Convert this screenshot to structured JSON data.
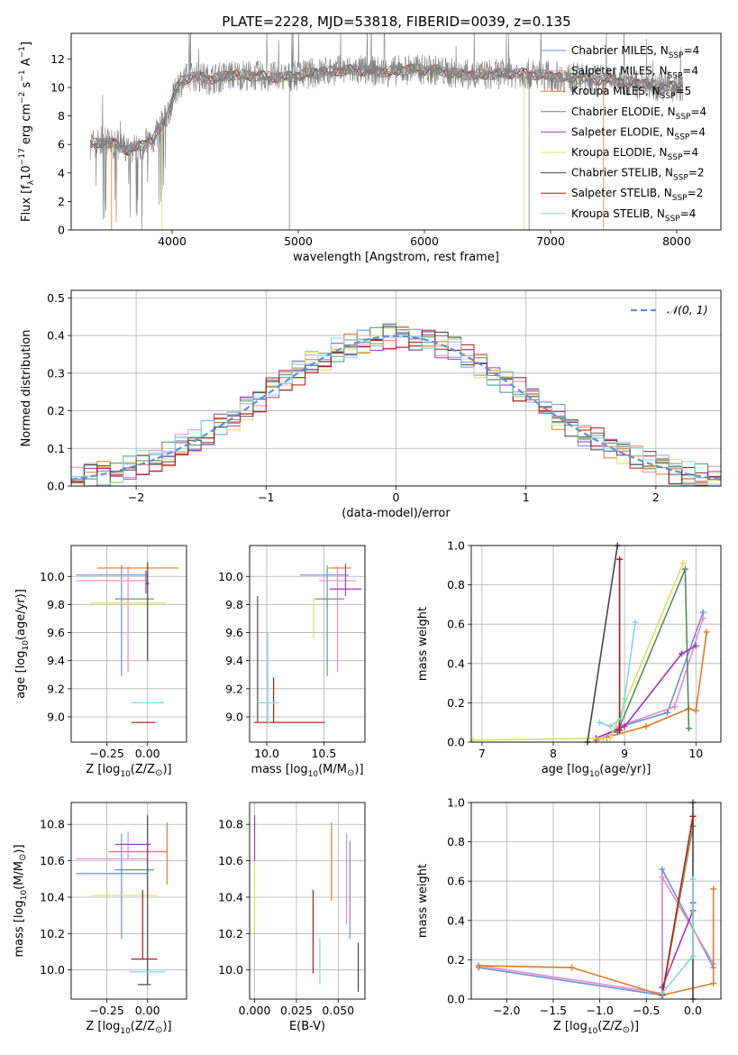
{
  "figure": {
    "title": "PLATE=2228, MJD=53818, FIBERID=0039, z=0.135"
  },
  "colors": {
    "Chabrier MILES": "#6a8fd8",
    "Salpeter MILES": "#e98ac8",
    "Kroupa MILES": "#e07a28",
    "Chabrier ELODIE": "#5a8a60",
    "Salpeter ELODIE": "#a035b8",
    "Kroupa ELODIE": "#d8e45a",
    "Chabrier STELIB": "#444444",
    "Salpeter STELIB": "#b01818",
    "Kroupa STELIB": "#7fd8de",
    "data": "#808080",
    "gauss": "#5a8fdc"
  },
  "chart_data": [
    {
      "id": "spectrum",
      "type": "line",
      "xlabel": "wavelength [Angstrom, rest frame]",
      "ylabel": "Flux [f_λ10^-17 erg cm^-2 s^-1 A^-1]",
      "xlim": [
        3200,
        8350
      ],
      "ylim": [
        0,
        13.8
      ],
      "xticks": [
        4000,
        5000,
        6000,
        7000,
        8000
      ],
      "yticks": [
        0,
        2,
        4,
        6,
        8,
        10,
        12
      ],
      "grid": false,
      "legend_position": "top-right",
      "legend": [
        "Chabrier MILES, N_SSP=4",
        "Salpeter MILES, N_SSP=4",
        "Kroupa MILES, N_SSP=5",
        "Chabrier ELODIE, N_SSP=4",
        "Salpeter ELODIE, N_SSP=4",
        "Kroupa ELODIE, N_SSP=4",
        "Chabrier STELIB, N_SSP=2",
        "Salpeter STELIB, N_SSP=2",
        "Kroupa STELIB, N_SSP=4"
      ],
      "continuum": {
        "x": [
          3350,
          3450,
          3550,
          3650,
          3750,
          3850,
          3950,
          4050,
          4150,
          4300,
          4500,
          4700,
          4900,
          5100,
          5300,
          5500,
          5700,
          5900,
          6100,
          6300,
          6500,
          6700,
          6900,
          7100,
          7300,
          7500,
          7700,
          7900,
          8050
        ],
        "y": [
          6.0,
          6.2,
          6.0,
          5.6,
          5.9,
          6.4,
          7.8,
          10.3,
          10.8,
          10.6,
          10.9,
          10.8,
          10.7,
          11.0,
          11.2,
          11.2,
          11.1,
          11.3,
          11.2,
          10.9,
          10.9,
          11.0,
          10.9,
          10.7,
          10.6,
          10.5,
          10.3,
          10.1,
          10.0
        ]
      }
    },
    {
      "id": "residuals",
      "type": "line",
      "xlabel": "(data-model)/error",
      "ylabel": "Normed distribution",
      "xlim": [
        -2.5,
        2.5
      ],
      "ylim": [
        0,
        0.52
      ],
      "xticks": [
        -2,
        -1,
        0,
        1,
        2
      ],
      "yticks": [
        0.0,
        0.1,
        0.2,
        0.3,
        0.4,
        0.5
      ],
      "grid": true,
      "legend_position": "top-right",
      "legend": [
        "N(0,1)"
      ],
      "gaussian": {
        "mean": 0,
        "sigma": 1,
        "style": "dashed"
      },
      "hist_bin_width": 0.1
    },
    {
      "id": "age-vs-Z",
      "type": "scatter",
      "xlabel": "Z [log10(Z/Z⊙)]",
      "ylabel": "age  [log10(age/yr)]",
      "xlim": [
        -0.47,
        0.24
      ],
      "ylim": [
        8.82,
        10.22
      ],
      "xticks": [
        -0.25,
        0.0
      ],
      "yticks": [
        9.0,
        9.2,
        9.4,
        9.6,
        9.8,
        10.0
      ],
      "grid": true,
      "points": [
        {
          "model": "Chabrier MILES",
          "x": -0.16,
          "y": 10.01,
          "xerr": [
            0.28,
            0.16
          ],
          "yerr": [
            0.72,
            0.07
          ]
        },
        {
          "model": "Salpeter MILES",
          "x": -0.12,
          "y": 9.97,
          "xerr": [
            0.32,
            0.12
          ],
          "yerr": [
            0.65,
            0.1
          ]
        },
        {
          "model": "Kroupa MILES",
          "x": -0.09,
          "y": 10.06,
          "xerr": [
            0.22,
            0.28
          ],
          "yerr": [
            0.0,
            0.0
          ]
        },
        {
          "model": "Chabrier ELODIE",
          "x": -0.09,
          "y": 9.84,
          "xerr": [
            0.11,
            0.13
          ],
          "yerr": [
            0.0,
            0.0
          ]
        },
        {
          "model": "Salpeter ELODIE",
          "x": -0.01,
          "y": 9.88,
          "xerr": [
            0.0,
            0.0
          ],
          "yerr": [
            0.0,
            0.16
          ]
        },
        {
          "model": "Kroupa ELODIE",
          "x": -0.12,
          "y": 9.81,
          "xerr": [
            0.23,
            0.24
          ],
          "yerr": [
            0.0,
            0.0
          ]
        },
        {
          "model": "Chabrier STELIB",
          "x": 0.0,
          "y": 9.95,
          "xerr": [
            0.01,
            0.01
          ],
          "yerr": [
            0.55,
            0.15
          ]
        },
        {
          "model": "Salpeter STELIB",
          "x": -0.03,
          "y": 8.96,
          "xerr": [
            0.07,
            0.08
          ],
          "yerr": [
            0.0,
            0.0
          ]
        },
        {
          "model": "Kroupa STELIB",
          "x": -0.03,
          "y": 9.1,
          "xerr": [
            0.07,
            0.13
          ],
          "yerr": [
            0.0,
            0.0
          ]
        }
      ]
    },
    {
      "id": "age-vs-mass",
      "type": "scatter",
      "xlabel": "mass [log10(M/M⊙)]",
      "ylabel": "",
      "xlim": [
        9.85,
        10.86
      ],
      "ylim": [
        8.82,
        10.22
      ],
      "xticks": [
        10.0,
        10.5
      ],
      "yticks": [
        9.0,
        9.2,
        9.4,
        9.6,
        9.8,
        10.0
      ],
      "grid": true,
      "points": [
        {
          "model": "Chabrier MILES",
          "x": 10.53,
          "y": 10.01,
          "xerr": [
            0.24,
            0.19
          ],
          "yerr": [
            0.72,
            0.07
          ]
        },
        {
          "model": "Salpeter MILES",
          "x": 10.62,
          "y": 9.97,
          "xerr": [
            0.16,
            0.16
          ],
          "yerr": [
            0.65,
            0.1
          ]
        },
        {
          "model": "Kroupa MILES",
          "x": 10.65,
          "y": 10.06,
          "xerr": [
            0.11,
            0.09
          ],
          "yerr": [
            0.0,
            0.0
          ]
        },
        {
          "model": "Chabrier ELODIE",
          "x": 10.55,
          "y": 9.84,
          "xerr": [
            0.13,
            0.13
          ],
          "yerr": [
            0.0,
            0.0
          ]
        },
        {
          "model": "Salpeter ELODIE",
          "x": 10.69,
          "y": 9.91,
          "xerr": [
            0.14,
            0.14
          ],
          "yerr": [
            0.05,
            0.18
          ]
        },
        {
          "model": "Kroupa ELODIE",
          "x": 10.41,
          "y": 9.81,
          "xerr": [
            0.0,
            0.0
          ],
          "yerr": [
            0.25,
            0.04
          ]
        },
        {
          "model": "Chabrier STELIB",
          "x": 9.92,
          "y": 8.96,
          "xerr": [
            0.0,
            0.0
          ],
          "yerr": [
            0.0,
            0.9
          ]
        },
        {
          "model": "Salpeter STELIB",
          "x": 10.06,
          "y": 8.96,
          "xerr": [
            0.17,
            0.45
          ],
          "yerr": [
            0.0,
            0.32
          ]
        },
        {
          "model": "Kroupa STELIB",
          "x": 10.01,
          "y": 9.1,
          "xerr": [
            0.09,
            0.09
          ],
          "yerr": [
            0.15,
            0.5
          ]
        }
      ]
    },
    {
      "id": "mass-weight-vs-age",
      "type": "line",
      "xlabel": "age  [log10(age/yr)]",
      "ylabel": "mass weight",
      "xlim": [
        6.85,
        10.35
      ],
      "ylim": [
        0,
        1.0
      ],
      "xticks": [
        7,
        8,
        9,
        10
      ],
      "yticks": [
        0.0,
        0.2,
        0.4,
        0.6,
        0.8,
        1.0
      ],
      "grid": true,
      "series": [
        {
          "model": "Chabrier MILES",
          "x": [
            8.75,
            8.95,
            9.6,
            10.1
          ],
          "y": [
            0.02,
            0.08,
            0.15,
            0.66
          ]
        },
        {
          "model": "Salpeter MILES",
          "x": [
            8.7,
            8.92,
            9.7,
            10.1
          ],
          "y": [
            0.02,
            0.08,
            0.18,
            0.63
          ]
        },
        {
          "model": "Kroupa MILES",
          "x": [
            8.6,
            9.3,
            9.9,
            10.0,
            10.15
          ],
          "y": [
            0.01,
            0.08,
            0.17,
            0.16,
            0.56
          ]
        },
        {
          "model": "Chabrier ELODIE",
          "x": [
            8.9,
            9.85,
            9.9
          ],
          "y": [
            0.05,
            0.88,
            0.07
          ]
        },
        {
          "model": "Salpeter ELODIE",
          "x": [
            8.6,
            9.0,
            9.8,
            10.0
          ],
          "y": [
            0.02,
            0.08,
            0.45,
            0.49
          ]
        },
        {
          "model": "Kroupa ELODIE",
          "x": [
            6.88,
            8.8,
            9.82
          ],
          "y": [
            0.01,
            0.02,
            0.91
          ]
        },
        {
          "model": "Chabrier STELIB",
          "x": [
            8.48,
            8.9
          ],
          "y": [
            0.0,
            1.0
          ]
        },
        {
          "model": "Salpeter STELIB",
          "x": [
            8.93,
            8.93
          ],
          "y": [
            0.06,
            0.93
          ]
        },
        {
          "model": "Kroupa STELIB",
          "x": [
            8.65,
            8.8,
            8.95,
            9.0,
            9.15
          ],
          "y": [
            0.1,
            0.08,
            0.12,
            0.22,
            0.61
          ]
        }
      ]
    },
    {
      "id": "mass-vs-Z",
      "type": "scatter",
      "xlabel": "Z [log10(Z/Z⊙)]",
      "ylabel": "mass [log10(M/M⊙)]",
      "xlim": [
        -0.47,
        0.24
      ],
      "ylim": [
        9.84,
        10.92
      ],
      "xticks": [
        -0.25,
        0.0
      ],
      "yticks": [
        10.0,
        10.2,
        10.4,
        10.6,
        10.8
      ],
      "grid": true,
      "points": [
        {
          "model": "Chabrier MILES",
          "x": -0.16,
          "y": 10.53,
          "xerr": [
            0.28,
            0.16
          ],
          "yerr": [
            0.36,
            0.22
          ]
        },
        {
          "model": "Salpeter MILES",
          "x": -0.12,
          "y": 10.61,
          "xerr": [
            0.32,
            0.12
          ],
          "yerr": [
            0.0,
            0.15
          ]
        },
        {
          "model": "Kroupa MILES",
          "x": 0.12,
          "y": 10.65,
          "xerr": [
            0.36,
            0.0
          ],
          "yerr": [
            0.18,
            0.16
          ]
        },
        {
          "model": "Chabrier ELODIE",
          "x": -0.09,
          "y": 10.55,
          "xerr": [
            0.11,
            0.13
          ],
          "yerr": [
            0.0,
            0.0
          ]
        },
        {
          "model": "Salpeter ELODIE",
          "x": -0.09,
          "y": 10.69,
          "xerr": [
            0.11,
            0.11
          ],
          "yerr": [
            0.0,
            0.0
          ]
        },
        {
          "model": "Kroupa ELODIE",
          "x": -0.12,
          "y": 10.41,
          "xerr": [
            0.23,
            0.18
          ],
          "yerr": [
            0.0,
            0.0
          ]
        },
        {
          "model": "Chabrier STELIB",
          "x": 0.0,
          "y": 9.92,
          "xerr": [
            0.06,
            0.02
          ],
          "yerr": [
            0.0,
            0.93
          ]
        },
        {
          "model": "Salpeter STELIB",
          "x": -0.03,
          "y": 10.06,
          "xerr": [
            0.07,
            0.09
          ],
          "yerr": [
            0.0,
            0.38
          ]
        },
        {
          "model": "Kroupa STELIB",
          "x": -0.03,
          "y": 9.99,
          "xerr": [
            0.08,
            0.14
          ],
          "yerr": [
            0.0,
            0.0
          ]
        }
      ]
    },
    {
      "id": "mass-vs-EBV",
      "type": "scatter",
      "xlabel": "E(B-V)",
      "ylabel": "",
      "xlim": [
        -0.003,
        0.066
      ],
      "ylim": [
        9.84,
        10.92
      ],
      "xticks": [
        0.0,
        0.025,
        0.05
      ],
      "yticks": [
        10.0,
        10.2,
        10.4,
        10.6,
        10.8
      ],
      "grid": true,
      "points": [
        {
          "model": "Chabrier MILES",
          "x": 0.057,
          "y": 10.45,
          "xerr": [
            0.0,
            0.0
          ],
          "yerr": [
            0.28,
            0.26
          ]
        },
        {
          "model": "Salpeter MILES",
          "x": 0.055,
          "y": 10.4,
          "xerr": [
            0.0,
            0.0
          ],
          "yerr": [
            0.15,
            0.35
          ]
        },
        {
          "model": "Kroupa MILES",
          "x": 0.046,
          "y": 10.55,
          "xerr": [
            0.0,
            0.0
          ],
          "yerr": [
            0.17,
            0.26
          ]
        },
        {
          "model": "Chabrier ELODIE",
          "x": 0.0,
          "y": 10.6,
          "xerr": [
            0.0,
            0.0
          ],
          "yerr": [
            0.0,
            0.0
          ]
        },
        {
          "model": "Salpeter ELODIE",
          "x": 0.0,
          "y": 10.7,
          "xerr": [
            0.0,
            0.0
          ],
          "yerr": [
            0.1,
            0.15
          ]
        },
        {
          "model": "Kroupa ELODIE",
          "x": 0.0,
          "y": 10.41,
          "xerr": [
            0.0,
            0.0
          ],
          "yerr": [
            0.2,
            0.18
          ]
        },
        {
          "model": "Chabrier STELIB",
          "x": 0.062,
          "y": 10.02,
          "xerr": [
            0.0,
            0.0
          ],
          "yerr": [
            0.14,
            0.13
          ]
        },
        {
          "model": "Salpeter STELIB",
          "x": 0.035,
          "y": 10.21,
          "xerr": [
            0.0,
            0.0
          ],
          "yerr": [
            0.23,
            0.23
          ]
        },
        {
          "model": "Kroupa STELIB",
          "x": 0.039,
          "y": 10.09,
          "xerr": [
            0.0,
            0.0
          ],
          "yerr": [
            0.17,
            0.09
          ]
        }
      ]
    },
    {
      "id": "mass-weight-vs-Z",
      "type": "line",
      "xlabel": "Z [log10(Z/Z⊙)]",
      "ylabel": "mass weight",
      "xlim": [
        -2.38,
        0.3
      ],
      "ylim": [
        0,
        1.0
      ],
      "xticks": [
        -2.0,
        -1.5,
        -1.0,
        -0.5,
        0.0
      ],
      "yticks": [
        0.0,
        0.2,
        0.4,
        0.6,
        0.8,
        1.0
      ],
      "grid": true,
      "series": [
        {
          "model": "Chabrier MILES",
          "x": [
            -2.3,
            -0.33,
            -0.33,
            0.22
          ],
          "y": [
            0.16,
            0.02,
            0.66,
            0.16
          ]
        },
        {
          "model": "Salpeter MILES",
          "x": [
            -2.3,
            -0.33,
            -0.33,
            0.22
          ],
          "y": [
            0.17,
            0.03,
            0.62,
            0.18
          ]
        },
        {
          "model": "Kroupa MILES",
          "x": [
            -2.3,
            -1.3,
            -0.33,
            0.22,
            0.22
          ],
          "y": [
            0.17,
            0.16,
            0.02,
            0.08,
            0.56
          ]
        },
        {
          "model": "Chabrier ELODIE",
          "x": [
            -0.33,
            0.0
          ],
          "y": [
            0.02,
            0.88
          ]
        },
        {
          "model": "Salpeter ELODIE",
          "x": [
            -0.33,
            0.0,
            0.0
          ],
          "y": [
            0.06,
            0.45,
            0.49
          ]
        },
        {
          "model": "Kroupa ELODIE",
          "x": [
            -0.33,
            0.0
          ],
          "y": [
            0.02,
            0.91
          ]
        },
        {
          "model": "Chabrier STELIB",
          "x": [
            0.0,
            0.0
          ],
          "y": [
            0.0,
            1.0
          ]
        },
        {
          "model": "Salpeter STELIB",
          "x": [
            -0.33,
            0.0
          ],
          "y": [
            0.02,
            0.93
          ]
        },
        {
          "model": "Kroupa STELIB",
          "x": [
            -0.33,
            0.0,
            0.0
          ],
          "y": [
            0.03,
            0.22,
            0.61
          ]
        }
      ]
    }
  ]
}
